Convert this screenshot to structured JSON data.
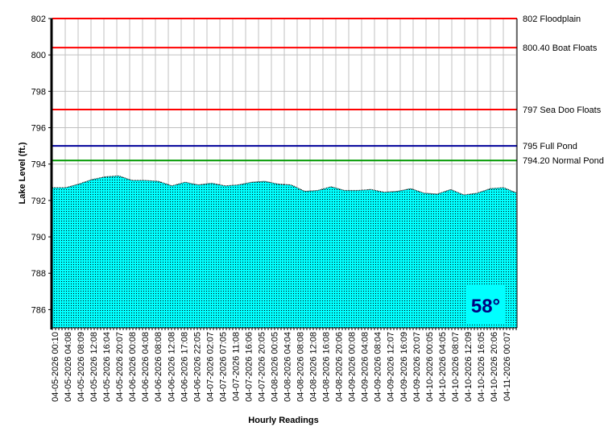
{
  "chart_data": {
    "type": "area",
    "title": "",
    "xlabel": "Hourly Readings",
    "ylabel": "Lake Level (ft.)",
    "ylim": [
      785,
      802
    ],
    "yticks": [
      786,
      788,
      790,
      792,
      794,
      796,
      798,
      800,
      802
    ],
    "grid": true,
    "categories": [
      "04-05-2026 00:10",
      "04-05-2026 04:08",
      "04-05-2026 08:09",
      "04-05-2026 12:08",
      "04-05-2026 16:04",
      "04-05-2026 20:07",
      "04-06-2026 00:08",
      "04-06-2026 04:08",
      "04-06-2026 08:08",
      "04-06-2026 12:08",
      "04-06-2026 17:08",
      "04-06-2026 22:05",
      "04-07-2026 02:07",
      "04-07-2026 07:05",
      "04-07-2026 11:08",
      "04-07-2026 16:06",
      "04-07-2026 20:05",
      "04-08-2026 00:05",
      "04-08-2026 04:04",
      "04-08-2026 08:08",
      "04-08-2026 12:08",
      "04-08-2026 16:08",
      "04-08-2026 20:06",
      "04-09-2026 00:08",
      "04-09-2026 04:08",
      "04-09-2026 08:04",
      "04-09-2026 12:07",
      "04-09-2026 16:09",
      "04-09-2026 20:07",
      "04-10-2026 00:05",
      "04-10-2026 04:05",
      "04-10-2026 08:07",
      "04-10-2026 12:09",
      "04-10-2026 16:05",
      "04-10-2026 20:06",
      "04-11-2026 00:07"
    ],
    "values": [
      792.7,
      792.7,
      792.9,
      793.15,
      793.3,
      793.35,
      793.1,
      793.1,
      793.05,
      792.8,
      793.0,
      792.85,
      792.95,
      792.8,
      792.85,
      793.0,
      793.05,
      792.9,
      792.85,
      792.5,
      792.55,
      792.75,
      792.55,
      792.55,
      792.6,
      792.45,
      792.5,
      792.65,
      792.4,
      792.35,
      792.6,
      792.3,
      792.4,
      792.65,
      792.7,
      792.4
    ],
    "series_color": "#00ffff",
    "reference_lines": [
      {
        "value": 802,
        "label": "802 Floodplain",
        "color": "#ff0000"
      },
      {
        "value": 800.4,
        "label": "800.40 Boat Floats",
        "color": "#ff0000"
      },
      {
        "value": 797,
        "label": "797 Sea Doo Floats",
        "color": "#ff0000"
      },
      {
        "value": 795,
        "label": "795 Full Pond",
        "color": "#000099"
      },
      {
        "value": 794.2,
        "label": "794.20 Normal Pond",
        "color": "#009900"
      }
    ],
    "annotation": {
      "text": "58°",
      "color": "#000080",
      "background": "#00ffff"
    }
  }
}
